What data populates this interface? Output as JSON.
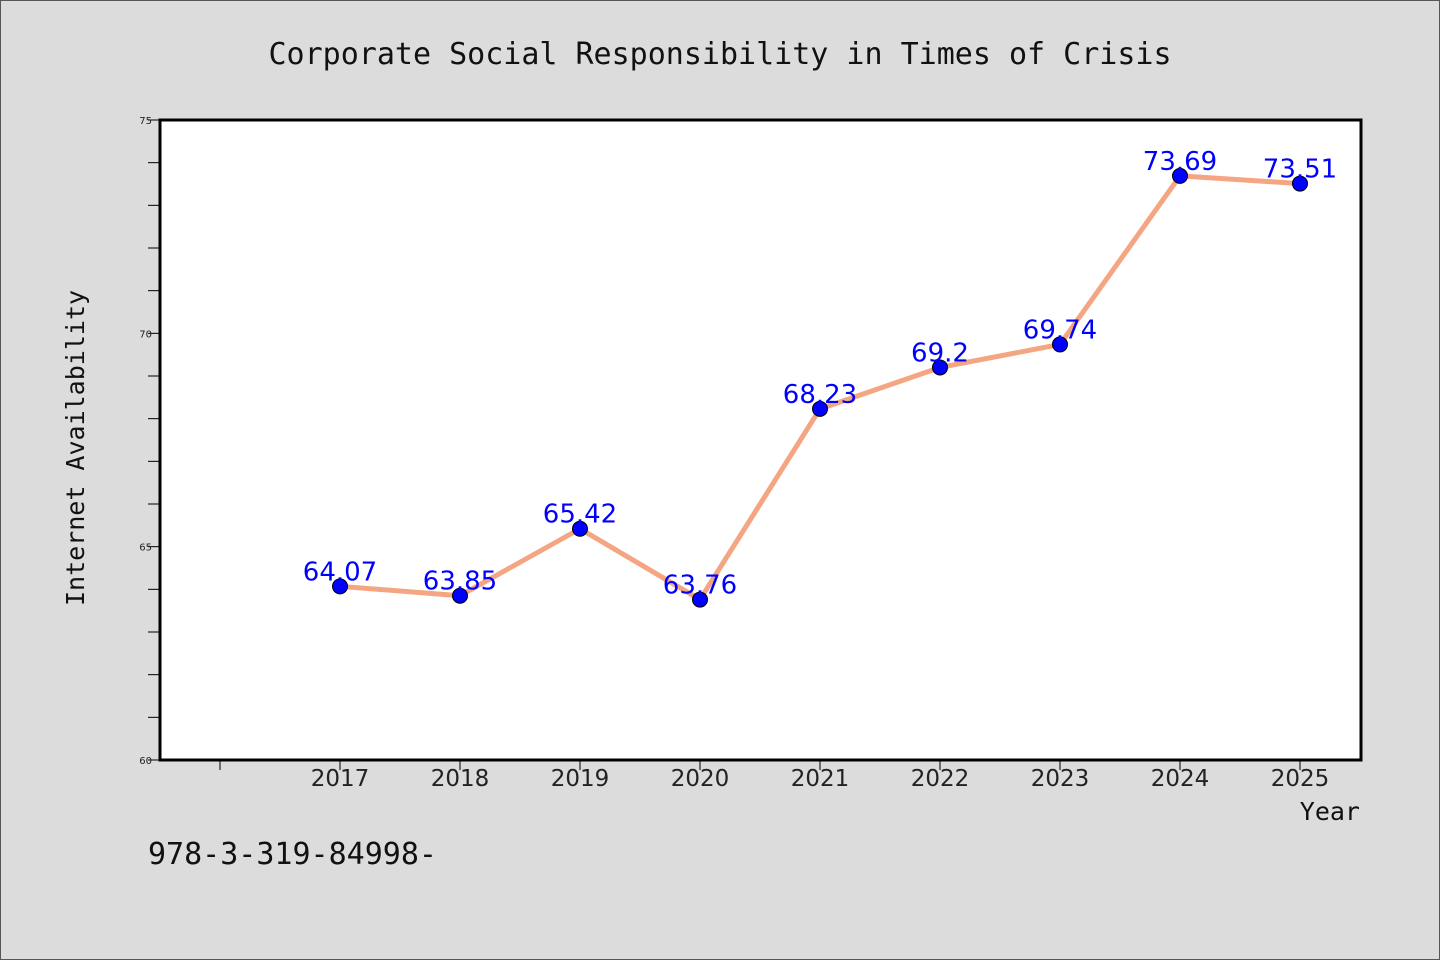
{
  "chart_data": {
    "type": "line",
    "title": "Corporate Social Responsibility in Times of Crisis",
    "xlabel": "Year",
    "ylabel": "Internet Availability",
    "categories": [
      "2017",
      "2018",
      "2019",
      "2020",
      "2021",
      "2022",
      "2023",
      "2024",
      "2025"
    ],
    "series": [
      {
        "values": [
          64.07,
          63.85,
          65.42,
          63.76,
          68.23,
          69.2,
          69.74,
          73.69,
          73.51
        ],
        "labels": [
          "64.07",
          "63.85",
          "65.42",
          "63.76",
          "68.23",
          "69.2",
          "69.74",
          "73.69",
          "73.51"
        ]
      }
    ],
    "ylim": [
      60,
      75
    ],
    "yticks": [
      60,
      65,
      70,
      75
    ],
    "ytick_labels": [
      "60",
      "65",
      "70",
      "75"
    ],
    "y_minor_step": 1,
    "grid": false,
    "colors": {
      "line": "#f4a582",
      "marker": "#0000ff",
      "label": "#0000ff",
      "background": "#dcdcdc",
      "plot_background": "#ffffff"
    }
  },
  "footer": "978-3-319-84998-"
}
